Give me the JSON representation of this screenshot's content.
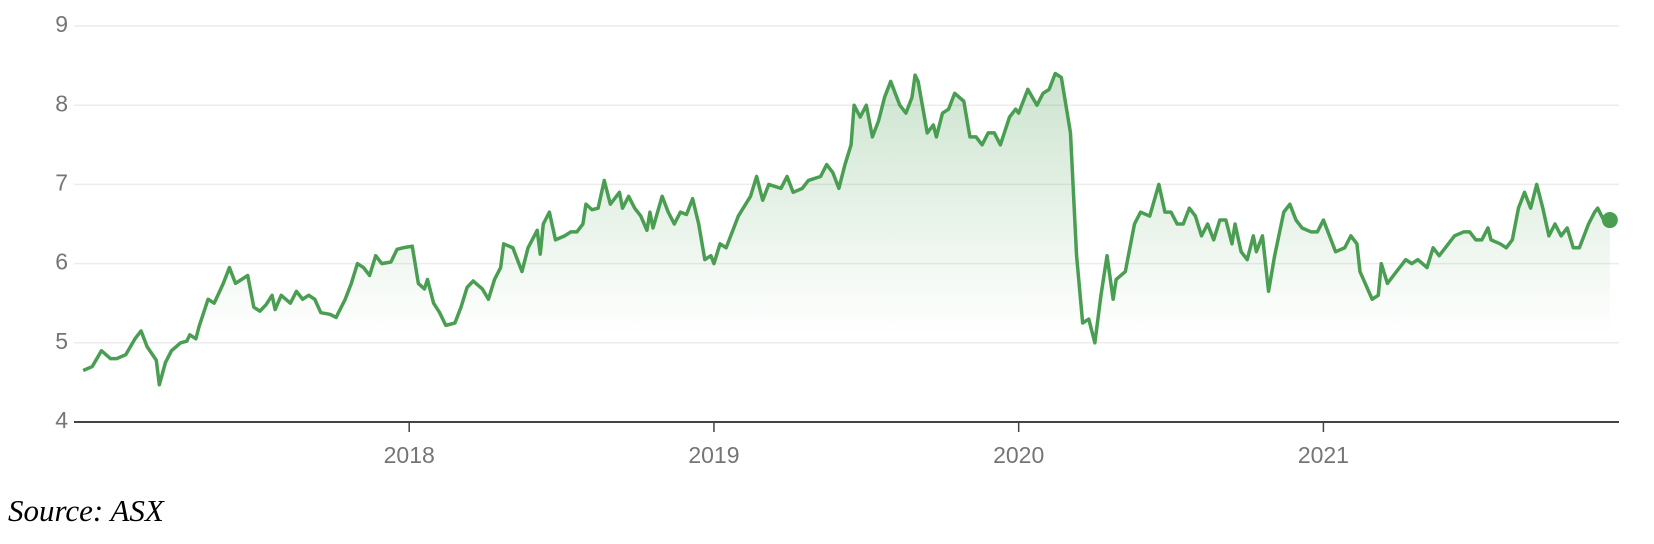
{
  "chart_data": {
    "type": "line",
    "source": "Source: ASX",
    "color": "#4a9e52",
    "grid": true,
    "xlim": [
      2016.9,
      2021.97
    ],
    "xticks": [
      2018,
      2019,
      2020,
      2021
    ],
    "ylim": [
      4,
      9
    ],
    "yticks": [
      4,
      5,
      6,
      7,
      8,
      9
    ],
    "x": [
      2016.93,
      2016.96,
      2016.99,
      2017.02,
      2017.04,
      2017.07,
      2017.1,
      2017.12,
      2017.14,
      2017.17,
      2017.18,
      2017.2,
      2017.22,
      2017.25,
      2017.27,
      2017.28,
      2017.3,
      2017.31,
      2017.34,
      2017.36,
      2017.39,
      2017.41,
      2017.43,
      2017.47,
      2017.49,
      2017.51,
      2017.53,
      2017.55,
      2017.56,
      2017.58,
      2017.61,
      2017.63,
      2017.65,
      2017.67,
      2017.69,
      2017.71,
      2017.74,
      2017.76,
      2017.79,
      2017.81,
      2017.83,
      2017.85,
      2017.87,
      2017.89,
      2017.91,
      2017.94,
      2017.96,
      2017.98,
      2018.01,
      2018.03,
      2018.05,
      2018.06,
      2018.08,
      2018.1,
      2018.12,
      2018.15,
      2018.17,
      2018.19,
      2018.21,
      2018.24,
      2018.26,
      2018.28,
      2018.3,
      2018.31,
      2018.34,
      2018.37,
      2018.39,
      2018.42,
      2018.43,
      2018.44,
      2018.46,
      2018.48,
      2018.51,
      2018.53,
      2018.55,
      2018.57,
      2018.58,
      2018.6,
      2018.62,
      2018.64,
      2018.66,
      2018.69,
      2018.7,
      2018.72,
      2018.74,
      2018.76,
      2018.78,
      2018.79,
      2018.8,
      2018.83,
      2018.85,
      2018.87,
      2018.89,
      2018.91,
      2018.93,
      2018.95,
      2018.97,
      2018.99,
      2019.0,
      2019.02,
      2019.04,
      2019.08,
      2019.12,
      2019.14,
      2019.16,
      2019.18,
      2019.22,
      2019.24,
      2019.26,
      2019.29,
      2019.31,
      2019.35,
      2019.37,
      2019.39,
      2019.41,
      2019.43,
      2019.45,
      2019.46,
      2019.48,
      2019.5,
      2019.52,
      2019.54,
      2019.56,
      2019.58,
      2019.61,
      2019.63,
      2019.65,
      2019.66,
      2019.67,
      2019.7,
      2019.72,
      2019.73,
      2019.75,
      2019.77,
      2019.79,
      2019.82,
      2019.84,
      2019.86,
      2019.88,
      2019.9,
      2019.92,
      2019.94,
      2019.97,
      2019.99,
      2020.0,
      2020.02,
      2020.03,
      2020.06,
      2020.08,
      2020.1,
      2020.12,
      2020.14,
      2020.17,
      2020.19,
      2020.21,
      2020.23,
      2020.25,
      2020.27,
      2020.29,
      2020.31,
      2020.32,
      2020.35,
      2020.38,
      2020.4,
      2020.43,
      2020.46,
      2020.48,
      2020.5,
      2020.52,
      2020.54,
      2020.56,
      2020.58,
      2020.6,
      2020.62,
      2020.64,
      2020.66,
      2020.68,
      2020.7,
      2020.71,
      2020.73,
      2020.75,
      2020.77,
      2020.78,
      2020.8,
      2020.82,
      2020.84,
      2020.87,
      2020.89,
      2020.91,
      2020.93,
      2020.96,
      2020.98,
      2021.0,
      2021.02,
      2021.04,
      2021.07,
      2021.09,
      2021.11,
      2021.12,
      2021.16,
      2021.18,
      2021.19,
      2021.21,
      2021.23,
      2021.27,
      2021.29,
      2021.31,
      2021.34,
      2021.36,
      2021.38,
      2021.4,
      2021.43,
      2021.46,
      2021.48,
      2021.5,
      2021.52,
      2021.54,
      2021.55,
      2021.58,
      2021.6,
      2021.62,
      2021.64,
      2021.66,
      2021.68,
      2021.7,
      2021.72,
      2021.74,
      2021.76,
      2021.78,
      2021.8,
      2021.82,
      2021.84,
      2021.87,
      2021.89,
      2021.9,
      2021.92,
      2021.94
    ],
    "values": [
      4.65,
      4.7,
      4.9,
      4.8,
      4.8,
      4.85,
      5.05,
      5.15,
      4.95,
      4.78,
      4.47,
      4.75,
      4.9,
      5.0,
      5.02,
      5.1,
      5.05,
      5.2,
      5.55,
      5.5,
      5.75,
      5.95,
      5.75,
      5.85,
      5.45,
      5.4,
      5.48,
      5.6,
      5.42,
      5.6,
      5.5,
      5.65,
      5.55,
      5.6,
      5.55,
      5.38,
      5.36,
      5.32,
      5.55,
      5.75,
      6.0,
      5.95,
      5.85,
      6.1,
      6.0,
      6.02,
      6.18,
      6.2,
      6.22,
      5.75,
      5.68,
      5.8,
      5.5,
      5.38,
      5.22,
      5.25,
      5.45,
      5.7,
      5.78,
      5.68,
      5.55,
      5.8,
      5.95,
      6.25,
      6.2,
      5.9,
      6.2,
      6.42,
      6.12,
      6.5,
      6.65,
      6.3,
      6.35,
      6.4,
      6.4,
      6.5,
      6.75,
      6.68,
      6.7,
      7.05,
      6.75,
      6.9,
      6.7,
      6.85,
      6.7,
      6.6,
      6.42,
      6.65,
      6.45,
      6.85,
      6.65,
      6.5,
      6.65,
      6.62,
      6.82,
      6.5,
      6.05,
      6.1,
      6.0,
      6.25,
      6.2,
      6.6,
      6.85,
      7.1,
      6.8,
      7.0,
      6.95,
      7.1,
      6.9,
      6.95,
      7.05,
      7.1,
      7.25,
      7.15,
      6.95,
      7.25,
      7.5,
      8.0,
      7.85,
      8.0,
      7.6,
      7.8,
      8.1,
      8.3,
      8.0,
      7.9,
      8.1,
      8.38,
      8.3,
      7.65,
      7.75,
      7.6,
      7.9,
      7.95,
      8.15,
      8.05,
      7.6,
      7.6,
      7.5,
      7.65,
      7.65,
      7.5,
      7.85,
      7.95,
      7.9,
      8.1,
      8.2,
      8.0,
      8.15,
      8.2,
      8.4,
      8.35,
      7.65,
      6.1,
      5.25,
      5.3,
      5.0,
      5.6,
      6.1,
      5.55,
      5.8,
      5.9,
      6.5,
      6.65,
      6.6,
      7.0,
      6.65,
      6.65,
      6.5,
      6.5,
      6.7,
      6.6,
      6.35,
      6.5,
      6.3,
      6.55,
      6.55,
      6.25,
      6.5,
      6.15,
      6.05,
      6.35,
      6.15,
      6.35,
      5.65,
      6.1,
      6.65,
      6.75,
      6.55,
      6.45,
      6.4,
      6.4,
      6.55,
      6.35,
      6.15,
      6.2,
      6.35,
      6.25,
      5.9,
      5.55,
      5.6,
      6.0,
      5.75,
      5.85,
      6.05,
      6.0,
      6.05,
      5.95,
      6.2,
      6.1,
      6.2,
      6.35,
      6.4,
      6.4,
      6.3,
      6.3,
      6.45,
      6.3,
      6.25,
      6.2,
      6.3,
      6.7,
      6.9,
      6.7,
      7.0,
      6.7,
      6.35,
      6.5,
      6.35,
      6.45,
      6.2,
      6.2,
      6.5,
      6.65,
      6.7,
      6.55,
      6.55
    ]
  }
}
